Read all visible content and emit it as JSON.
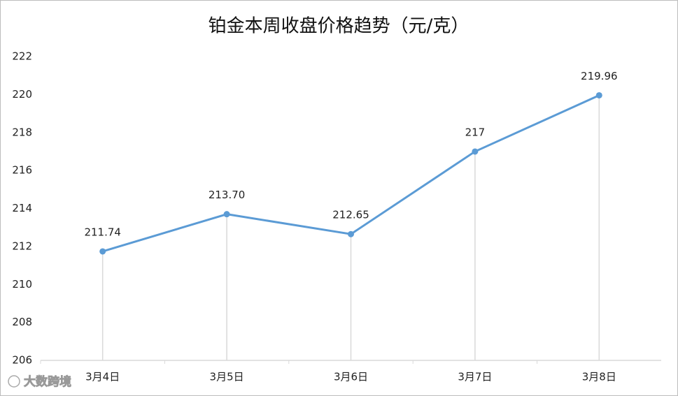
{
  "chart_data": {
    "type": "line",
    "title": "铂金本周收盘价格趋势（元/克）",
    "categories": [
      "3月4日",
      "3月5日",
      "3月6日",
      "3月7日",
      "3月8日"
    ],
    "values": [
      211.74,
      213.7,
      212.65,
      217,
      219.96
    ],
    "value_labels": [
      "211.74",
      "213.70",
      "212.65",
      "217",
      "219.96"
    ],
    "color": "#5b9bd5",
    "ylim": [
      206,
      222
    ],
    "yticks": [
      206,
      208,
      210,
      212,
      214,
      216,
      218,
      220,
      222
    ],
    "grid": false,
    "drop_lines": true
  },
  "watermark": "大数跨境"
}
